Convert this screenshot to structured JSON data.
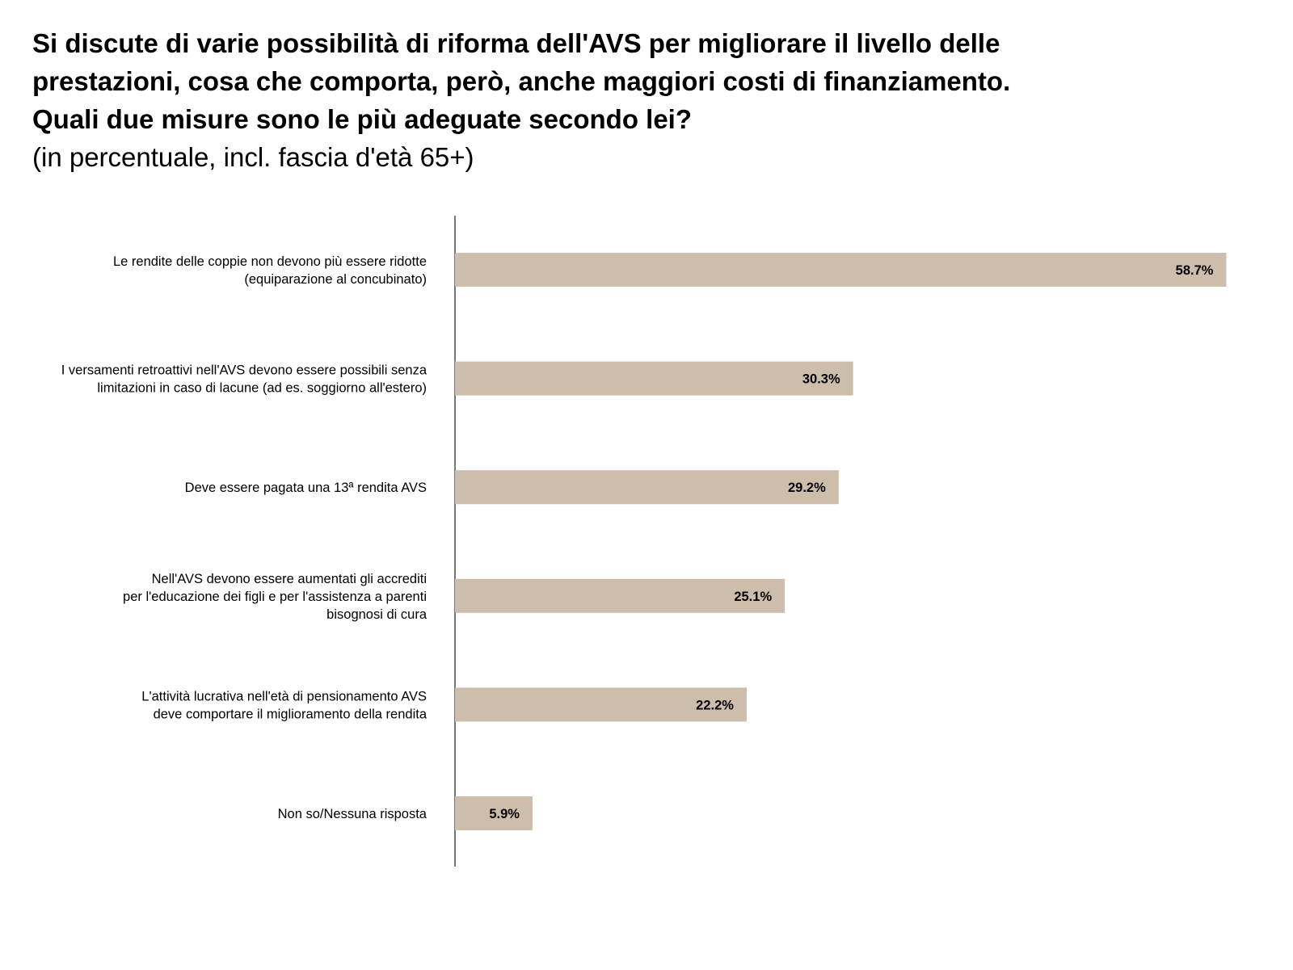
{
  "chart_data": {
    "type": "bar",
    "orientation": "horizontal",
    "title_lines": [
      "Si discute di varie possibilità di riforma dell'AVS per migliorare il livello delle",
      "prestazioni, cosa che comporta, però, anche maggiori costi di finanziamento.",
      "Quali due misure sono le più adeguate secondo lei?"
    ],
    "subtitle": "(in percentuale, incl. fascia d'età 65+)",
    "categories": [
      [
        "Le rendite delle coppie non devono più essere ridotte",
        "(equiparazione al concubinato)"
      ],
      [
        "I versamenti retroattivi nell'AVS devono essere possibili senza",
        "limitazioni in caso di lacune (ad es. soggiorno all'estero)"
      ],
      [
        "Deve essere pagata una 13ª rendita AVS"
      ],
      [
        "Nell'AVS devono essere aumentati gli accrediti",
        "per l'educazione dei figli e per l'assistenza a parenti",
        "bisognosi di cura"
      ],
      [
        "L'attività lucrativa nell'età di pensionamento AVS",
        "deve comportare il miglioramento della rendita"
      ],
      [
        "Non so/Nessuna risposta"
      ]
    ],
    "values": [
      58.7,
      30.3,
      29.2,
      25.1,
      22.2,
      5.9
    ],
    "value_labels": [
      "58.7%",
      "30.3%",
      "29.2%",
      "25.1%",
      "22.2%",
      "5.9%"
    ],
    "xlim": [
      0,
      60
    ],
    "bar_color": "#cdbdab",
    "axis_color": "#555555",
    "grid": false,
    "legend": false
  }
}
